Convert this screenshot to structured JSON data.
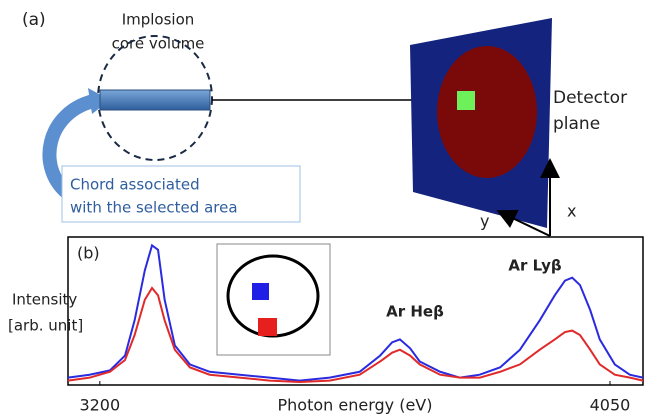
{
  "diagram": {
    "panel_label": "(a)",
    "core_label": [
      "Implosion",
      "core volume"
    ],
    "detector_label": [
      "Detector",
      "plane"
    ],
    "chord_label": [
      "Chord associated",
      "with the selected area"
    ],
    "axis_x": "x",
    "axis_y": "y"
  },
  "chart_data": {
    "type": "line",
    "panel_label": "(b)",
    "xlabel": "Photon energy (eV)",
    "ylabel": [
      "Intensity",
      "[arb. unit]"
    ],
    "annotations": [
      "Ar Heβ",
      "Ar Lyβ"
    ],
    "x": [
      3147,
      3183,
      3217,
      3242,
      3258,
      3275,
      3287,
      3297,
      3308,
      3325,
      3350,
      3383,
      3433,
      3483,
      3533,
      3583,
      3633,
      3667,
      3687,
      3700,
      3717,
      3733,
      3767,
      3800,
      3833,
      3867,
      3900,
      3933,
      3958,
      3975,
      3987,
      4000,
      4017,
      4033,
      4058,
      4083,
      4105
    ],
    "series": [
      {
        "name": "blue",
        "color": "#2a2ae0",
        "values": [
          0.05,
          0.07,
          0.1,
          0.2,
          0.44,
          0.78,
          0.95,
          0.92,
          0.58,
          0.27,
          0.14,
          0.09,
          0.07,
          0.05,
          0.03,
          0.05,
          0.09,
          0.2,
          0.29,
          0.31,
          0.25,
          0.16,
          0.09,
          0.05,
          0.07,
          0.12,
          0.24,
          0.44,
          0.61,
          0.71,
          0.73,
          0.68,
          0.51,
          0.31,
          0.14,
          0.07,
          0.05
        ]
      },
      {
        "name": "red",
        "color": "#e02a2a",
        "values": [
          0.03,
          0.05,
          0.09,
          0.17,
          0.34,
          0.58,
          0.66,
          0.61,
          0.44,
          0.24,
          0.12,
          0.07,
          0.05,
          0.03,
          0.02,
          0.03,
          0.07,
          0.16,
          0.22,
          0.24,
          0.2,
          0.14,
          0.07,
          0.05,
          0.05,
          0.09,
          0.14,
          0.24,
          0.31,
          0.36,
          0.37,
          0.34,
          0.24,
          0.14,
          0.07,
          0.05,
          0.03
        ]
      }
    ],
    "xlim": [
      3147,
      4105
    ],
    "xticks": [
      3200,
      4050
    ],
    "ylim": [
      0,
      1
    ]
  }
}
